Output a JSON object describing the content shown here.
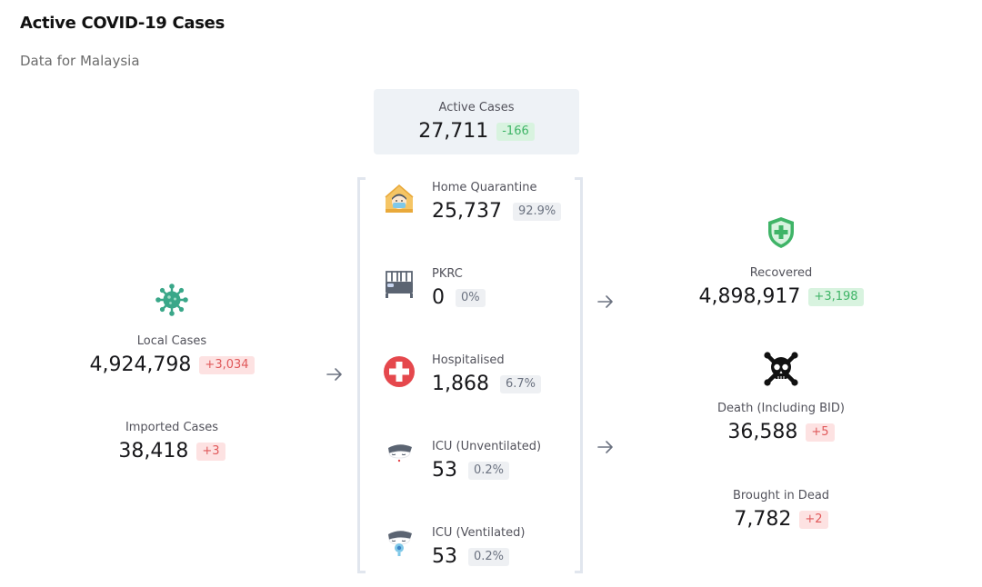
{
  "header": {
    "title": "Active COVID-19 Cases",
    "subtitle": "Data for Malaysia"
  },
  "active": {
    "label": "Active Cases",
    "value": "27,711",
    "delta": "-166",
    "delta_color": "green"
  },
  "inflow": {
    "local": {
      "label": "Local Cases",
      "value": "4,924,798",
      "delta": "+3,034",
      "icon": "virus-icon"
    },
    "imported": {
      "label": "Imported Cases",
      "value": "38,418",
      "delta": "+3"
    }
  },
  "categories": [
    {
      "label": "Home Quarantine",
      "value": "25,737",
      "pct": "92.9%",
      "icon": "home-quarantine-icon"
    },
    {
      "label": "PKRC",
      "value": "0",
      "pct": "0%",
      "icon": "bed-icon"
    },
    {
      "label": "Hospitalised",
      "value": "1,868",
      "pct": "6.7%",
      "icon": "medical-cross-icon"
    },
    {
      "label": "ICU (Unventilated)",
      "value": "53",
      "pct": "0.2%",
      "icon": "icu-patient-icon"
    },
    {
      "label": "ICU (Ventilated)",
      "value": "53",
      "pct": "0.2%",
      "icon": "ventilator-icon"
    }
  ],
  "outflow": {
    "recovered": {
      "label": "Recovered",
      "value": "4,898,917",
      "delta": "+3,198",
      "icon": "shield-plus-icon"
    },
    "death": {
      "label": "Death (Including BID)",
      "value": "36,588",
      "delta": "+5",
      "icon": "skull-crossbones-icon"
    },
    "bid": {
      "label": "Brought in Dead",
      "value": "7,782",
      "delta": "+2"
    }
  },
  "colors": {
    "negative_badge_bg": "#fde2e2",
    "negative_badge_text": "#e0595a",
    "positive_badge_bg": "#d8f3df",
    "positive_badge_text": "#3fb467",
    "active_box_bg": "#eef2f6",
    "virus_green": "#3aa789",
    "shield_green": "#3fb467",
    "cross_red": "#e5484d",
    "home_yellow": "#f5c565"
  }
}
